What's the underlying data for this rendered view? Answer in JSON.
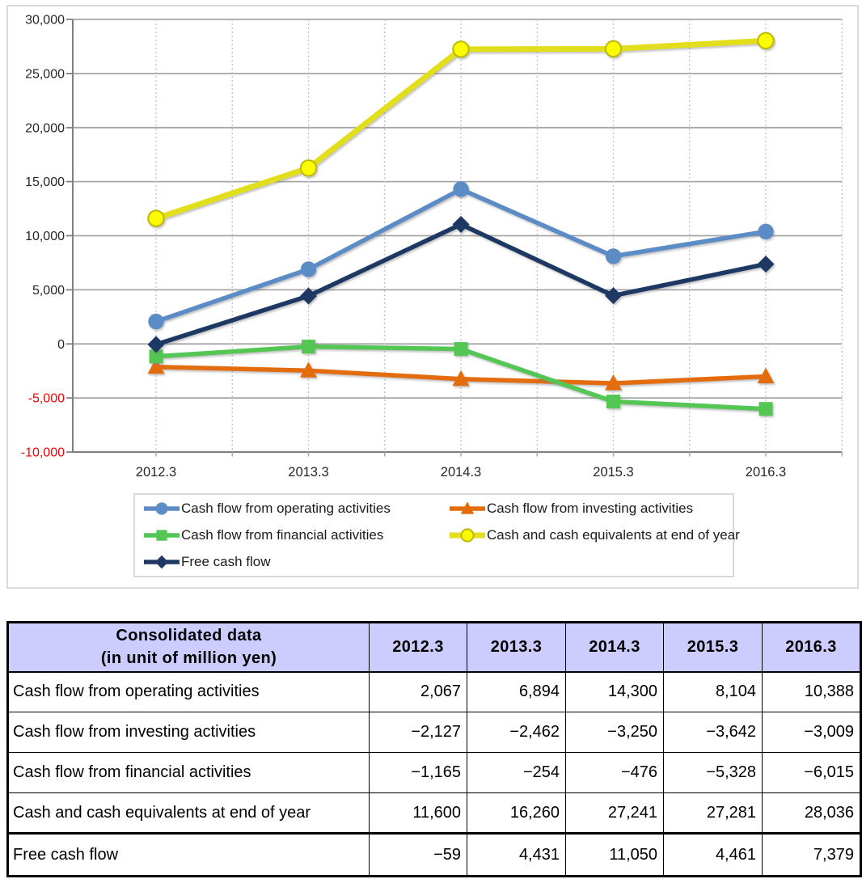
{
  "chart_data": {
    "type": "line",
    "title": "",
    "xlabel": "",
    "ylabel": "",
    "x": [
      "2012.3",
      "2013.3",
      "2014.3",
      "2015.3",
      "2016.3"
    ],
    "series": [
      {
        "name": "Cash flow from operating activities",
        "slug": "operating",
        "color": "#5C8CC6",
        "marker": "circle",
        "line_width": 5.5,
        "values": [
          2067,
          6894,
          14300,
          8104,
          10388
        ]
      },
      {
        "name": "Cash flow from investing activities",
        "slug": "investing",
        "color": "#E36C0A",
        "marker": "triangle",
        "line_width": 5.5,
        "values": [
          -2127,
          -2462,
          -3250,
          -3642,
          -3009
        ]
      },
      {
        "name": "Cash flow from financial activities",
        "slug": "financial",
        "color": "#53C653",
        "marker": "square",
        "line_width": 5.5,
        "values": [
          -1165,
          -254,
          -476,
          -5328,
          -6015
        ]
      },
      {
        "name": "Cash and cash equivalents at end of year",
        "slug": "cash-equivalents",
        "color": "#E3DE1E",
        "marker": "circle",
        "marker_fill": "#FCFC00",
        "marker_stroke": "#BDB800",
        "line_width": 7,
        "values": [
          11600,
          16260,
          27241,
          27281,
          28036
        ]
      },
      {
        "name": "Free cash flow",
        "slug": "free-cash-flow",
        "color": "#1F3864",
        "marker": "diamond",
        "line_width": 5.5,
        "values": [
          -59,
          4431,
          11050,
          4461,
          7379
        ]
      }
    ],
    "ylim": [
      -10000,
      30000
    ],
    "ytick_step": 5000,
    "ytick_labels": [
      "30,000",
      "25,000",
      "20,000",
      "15,000",
      "10,000",
      "5,000",
      "0",
      "-5,000",
      "-10,000"
    ],
    "grid": "on",
    "legend_position": "bottom",
    "colors": {
      "gridline": "#A6A6A6",
      "axis": "#808080",
      "dotted_gridline": "#C6C6C6",
      "tick_label": "#262626",
      "negative_tick_label": "#FF0000",
      "panel_border": "#DADADA",
      "legend_border": "#D9D9D9"
    }
  },
  "table": {
    "title_line1": "Consolidated data",
    "title_line2": "(in unit of million yen)",
    "header_bg": "#CCCCFF",
    "negative_color": "#FF0000",
    "columns": [
      "2012.3",
      "2013.3",
      "2014.3",
      "2015.3",
      "2016.3"
    ],
    "rows": [
      {
        "label": "Cash flow from operating activities",
        "values": [
          "2,067",
          "6,894",
          "14,300",
          "8,104",
          "10,388"
        ]
      },
      {
        "label": "Cash flow from investing activities",
        "values": [
          "−2,127",
          "−2,462",
          "−3,250",
          "−3,642",
          "−3,009"
        ]
      },
      {
        "label": "Cash flow from financial activities",
        "values": [
          "−1,165",
          "−254",
          "−476",
          "−5,328",
          "−6,015"
        ]
      },
      {
        "label": "Cash and cash equivalents at end of year",
        "values": [
          "11,600",
          "16,260",
          "27,241",
          "27,281",
          "28,036"
        ]
      },
      {
        "label": "Free cash flow",
        "values": [
          "−59",
          "4,431",
          "11,050",
          "4,461",
          "7,379"
        ]
      }
    ]
  }
}
